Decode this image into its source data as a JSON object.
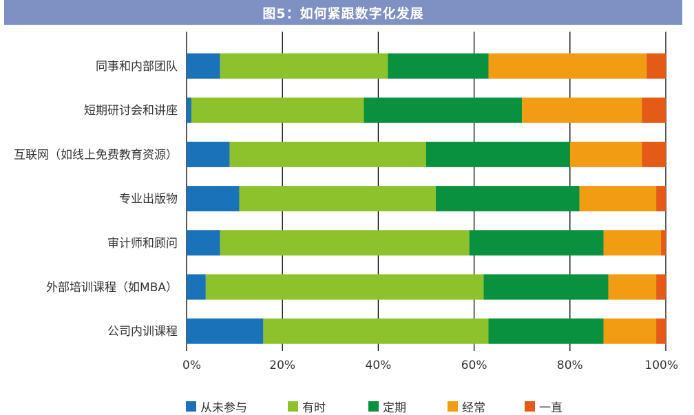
{
  "title": "图5：如何紧跟数字化发展",
  "chart_data": {
    "type": "bar",
    "orientation": "horizontal",
    "stacked": true,
    "categories": [
      "同事和内部团队",
      "短期研讨会和讲座",
      "互联网（如线上免费教育资源）",
      "专业出版物",
      "审计师和顾问",
      "外部培训课程（如MBA）",
      "公司内训课程"
    ],
    "series": [
      {
        "name": "从未参与",
        "color": "#1a72b9",
        "values": [
          7,
          1,
          9,
          11,
          7,
          4,
          16
        ]
      },
      {
        "name": "有时",
        "color": "#8dc22d",
        "values": [
          35,
          36,
          41,
          41,
          52,
          58,
          47
        ]
      },
      {
        "name": "定期",
        "color": "#0a9140",
        "values": [
          21,
          33,
          30,
          30,
          28,
          26,
          24
        ]
      },
      {
        "name": "经常",
        "color": "#f29c13",
        "values": [
          33,
          25,
          15,
          16,
          12,
          10,
          11
        ]
      },
      {
        "name": "一直",
        "color": "#e45b17",
        "values": [
          4,
          5,
          5,
          2,
          1,
          2,
          2
        ]
      }
    ],
    "xlim": [
      0,
      100
    ],
    "x_ticks": [
      "0%",
      "20%",
      "40%",
      "60%",
      "80%",
      "100%"
    ],
    "grid": true,
    "legend_position": "bottom"
  }
}
